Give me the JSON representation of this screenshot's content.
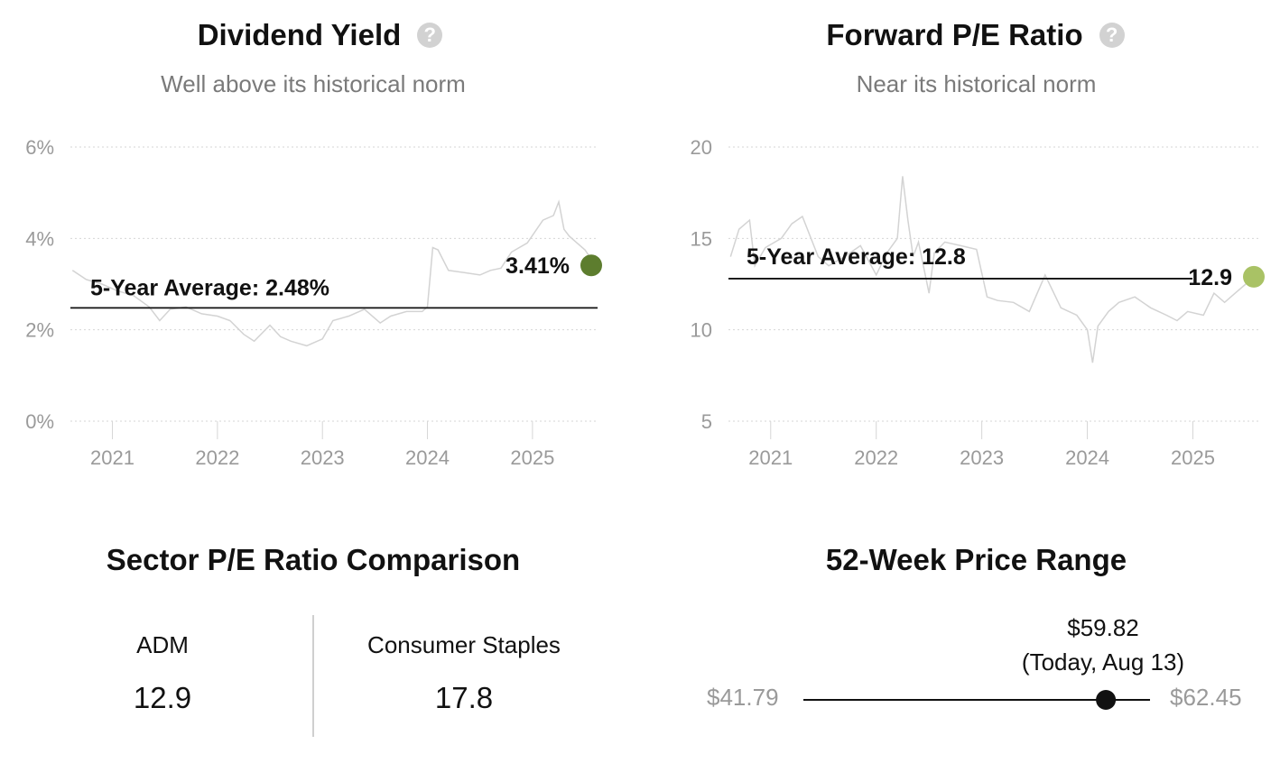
{
  "dividend_yield": {
    "title": "Dividend Yield",
    "help_icon": "question-circle-icon",
    "subtitle": "Well above its historical norm"
  },
  "forward_pe": {
    "title": "Forward P/E Ratio",
    "help_icon": "question-circle-icon",
    "subtitle": "Near its historical norm"
  },
  "chart_data": [
    {
      "type": "line",
      "title": "Dividend Yield",
      "subtitle": "Well above its historical norm",
      "x_range": [
        2020.6,
        2025.62
      ],
      "x_ticks": [
        2021,
        2022,
        2023,
        2024,
        2025
      ],
      "x_tick_labels": [
        "2021",
        "2022",
        "2023",
        "2024",
        "2025"
      ],
      "ylim": [
        0,
        6
      ],
      "y_ticks": [
        0,
        2,
        4,
        6
      ],
      "y_tick_labels": [
        "0%",
        "2%",
        "4%",
        "6%"
      ],
      "grid": true,
      "series": [
        {
          "color": "#d3d3d3",
          "x": [
            2020.62,
            2020.75,
            2020.9,
            2021.05,
            2021.2,
            2021.35,
            2021.45,
            2021.55,
            2021.7,
            2021.85,
            2022.0,
            2022.12,
            2022.25,
            2022.35,
            2022.5,
            2022.6,
            2022.7,
            2022.85,
            2023.0,
            2023.1,
            2023.25,
            2023.4,
            2023.55,
            2023.65,
            2023.8,
            2023.95,
            2024.0,
            2024.05,
            2024.1,
            2024.2,
            2024.35,
            2024.5,
            2024.6,
            2024.7,
            2024.8,
            2024.95,
            2025.1,
            2025.2,
            2025.25,
            2025.3,
            2025.35,
            2025.4,
            2025.5,
            2025.6
          ],
          "y": [
            3.3,
            3.1,
            3.0,
            2.85,
            2.75,
            2.5,
            2.2,
            2.45,
            2.5,
            2.35,
            2.3,
            2.2,
            1.9,
            1.75,
            2.1,
            1.85,
            1.75,
            1.65,
            1.8,
            2.2,
            2.3,
            2.45,
            2.15,
            2.3,
            2.4,
            2.4,
            2.5,
            3.8,
            3.75,
            3.3,
            3.25,
            3.2,
            3.3,
            3.35,
            3.7,
            3.9,
            4.4,
            4.5,
            4.8,
            4.2,
            4.05,
            3.95,
            3.75,
            3.41
          ]
        }
      ],
      "average": {
        "value": 2.48,
        "label": "5-Year Average: 2.48%"
      },
      "current": {
        "x": 2025.62,
        "value": 3.41,
        "label": "3.41%",
        "color": "#5d7d2e"
      }
    },
    {
      "type": "line",
      "title": "Forward P/E Ratio",
      "subtitle": "Near its historical norm",
      "x_range": [
        2020.6,
        2025.62
      ],
      "x_ticks": [
        2021,
        2022,
        2023,
        2024,
        2025
      ],
      "x_tick_labels": [
        "2021",
        "2022",
        "2023",
        "2024",
        "2025"
      ],
      "ylim": [
        5,
        20
      ],
      "y_ticks": [
        5,
        10,
        15,
        20
      ],
      "y_tick_labels": [
        "5",
        "10",
        "15",
        "20"
      ],
      "grid": true,
      "series": [
        {
          "color": "#d3d3d3",
          "x": [
            2020.62,
            2020.7,
            2020.8,
            2020.85,
            2020.95,
            2021.1,
            2021.2,
            2021.3,
            2021.45,
            2021.55,
            2021.7,
            2021.85,
            2022.0,
            2022.1,
            2022.2,
            2022.25,
            2022.3,
            2022.35,
            2022.4,
            2022.5,
            2022.55,
            2022.65,
            2022.8,
            2022.95,
            2023.05,
            2023.15,
            2023.3,
            2023.45,
            2023.6,
            2023.75,
            2023.9,
            2024.0,
            2024.05,
            2024.1,
            2024.2,
            2024.3,
            2024.45,
            2024.6,
            2024.75,
            2024.85,
            2024.95,
            2025.1,
            2025.2,
            2025.3,
            2025.4,
            2025.5,
            2025.6
          ],
          "y": [
            14.0,
            15.5,
            16.0,
            13.5,
            14.5,
            15.0,
            15.8,
            16.2,
            14.0,
            13.5,
            14.0,
            14.6,
            13.0,
            14.2,
            15.0,
            18.4,
            16.0,
            14.0,
            14.8,
            12.0,
            14.2,
            14.8,
            14.6,
            14.4,
            11.8,
            11.6,
            11.5,
            11.0,
            13.0,
            11.2,
            10.8,
            10.0,
            8.2,
            10.2,
            11.0,
            11.5,
            11.8,
            11.2,
            10.8,
            10.5,
            11.0,
            10.8,
            12.0,
            11.5,
            12.0,
            12.5,
            12.9
          ]
        }
      ],
      "average": {
        "value": 12.8,
        "label": "5-Year Average: 12.8"
      },
      "current": {
        "x": 2025.62,
        "value": 12.9,
        "label": "12.9",
        "color": "#a9c265"
      }
    }
  ],
  "sector_comparison": {
    "title": "Sector P/E Ratio Comparison",
    "left_label": "ADM",
    "left_value": "12.9",
    "right_label": "Consumer Staples",
    "right_value": "17.8"
  },
  "price_range": {
    "title": "52-Week Price Range",
    "low_label": "$41.79",
    "high_label": "$62.45",
    "low": 41.79,
    "high": 62.45,
    "current": 59.82,
    "current_price_label": "$59.82",
    "current_date_label": "(Today, Aug 13)"
  }
}
